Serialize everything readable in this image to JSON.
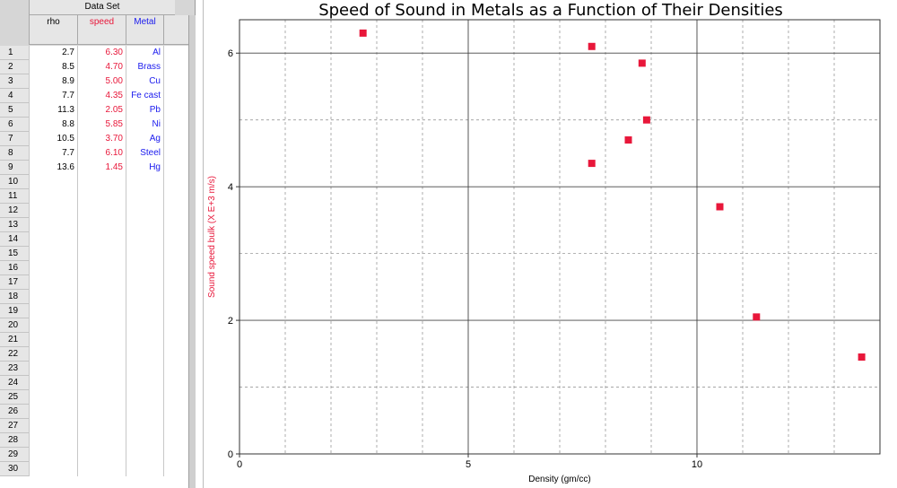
{
  "table": {
    "title": "Data Set",
    "columns": [
      {
        "label": "rho",
        "color": "#000000"
      },
      {
        "label": "speed",
        "color": "#e8173a"
      },
      {
        "label": "Metal",
        "color": "#1a1aee"
      }
    ],
    "row_numbers": [
      "1",
      "2",
      "3",
      "4",
      "5",
      "6",
      "7",
      "8",
      "9",
      "10",
      "11",
      "12",
      "13",
      "14",
      "15",
      "16",
      "17",
      "18",
      "19",
      "20",
      "21",
      "22",
      "23",
      "24",
      "25",
      "26",
      "27",
      "28",
      "29",
      "30"
    ],
    "rows": [
      {
        "rho": "2.7",
        "speed": "6.30",
        "metal": "Al"
      },
      {
        "rho": "8.5",
        "speed": "4.70",
        "metal": "Brass"
      },
      {
        "rho": "8.9",
        "speed": "5.00",
        "metal": "Cu"
      },
      {
        "rho": "7.7",
        "speed": "4.35",
        "metal": "Fe cast"
      },
      {
        "rho": "11.3",
        "speed": "2.05",
        "metal": "Pb"
      },
      {
        "rho": "8.8",
        "speed": "5.85",
        "metal": "Ni"
      },
      {
        "rho": "10.5",
        "speed": "3.70",
        "metal": "Ag"
      },
      {
        "rho": "7.7",
        "speed": "6.10",
        "metal": "Steel"
      },
      {
        "rho": "13.6",
        "speed": "1.45",
        "metal": "Hg"
      }
    ]
  },
  "chart_data": {
    "type": "scatter",
    "title": "Speed of Sound in Metals as a Function of Their Densities",
    "xlabel": "Density (gm/cc)",
    "ylabel": "Sound speed bulk (X E+3 m/s)",
    "xlim": [
      0,
      14
    ],
    "ylim": [
      0,
      6.5
    ],
    "xticks": [
      0,
      5,
      10
    ],
    "yticks": [
      0,
      2,
      4,
      6
    ],
    "grid": true,
    "marker_color": "#e8173a",
    "ylabel_color": "#e8173a",
    "series": [
      {
        "x": [
          2.7,
          8.5,
          8.9,
          7.7,
          11.3,
          8.8,
          10.5,
          7.7,
          13.6
        ],
        "y": [
          6.3,
          4.7,
          5.0,
          4.35,
          2.05,
          5.85,
          3.7,
          6.1,
          1.45
        ]
      }
    ]
  }
}
